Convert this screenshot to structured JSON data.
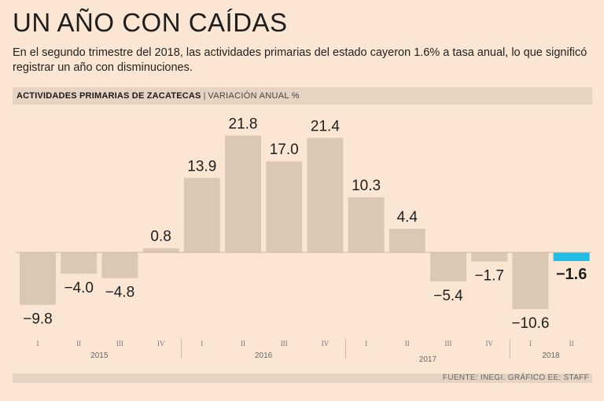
{
  "header": {
    "title": "UN AÑO CON CAÍDAS",
    "subtitle": "En el segundo trimestre del 2018, las actividades primarias del estado cayeron 1.6% a tasa anual, lo que significó registrar un año con disminuciones."
  },
  "band": {
    "indicator": "ACTIVIDADES PRIMARIAS DE ZACATECAS",
    "separator": "|",
    "unit": "VARIACIÓN ANUAL %"
  },
  "footer": {
    "source": "FUENTE: INEGI. GRÁFICO EE: STAFF"
  },
  "colors": {
    "bar": "#dbc8b4",
    "highlight": "#22bde6",
    "background": "#fbe6d3",
    "band": "#e6d3c1",
    "text": "#1e1e1e"
  },
  "chart_data": {
    "type": "bar",
    "title": "ACTIVIDADES PRIMARIAS DE ZACATECAS",
    "ylabel": "VARIACIÓN ANUAL %",
    "xlabel": "",
    "ylim": [
      -12,
      23
    ],
    "grid": false,
    "categories": [
      "I",
      "II",
      "III",
      "IV",
      "I",
      "II",
      "III",
      "IV",
      "I",
      "II",
      "III",
      "IV",
      "I",
      "II"
    ],
    "years": [
      {
        "label": "2015",
        "start": 0,
        "end": 3
      },
      {
        "label": "2016",
        "start": 4,
        "end": 7
      },
      {
        "label": "2017",
        "start": 8,
        "end": 11
      },
      {
        "label": "2018",
        "start": 12,
        "end": 13
      }
    ],
    "values": [
      -9.8,
      -4.0,
      -4.8,
      0.8,
      13.9,
      21.8,
      17.0,
      21.4,
      10.3,
      4.4,
      -5.4,
      -1.7,
      -10.6,
      -1.6
    ],
    "labels": [
      "−9.8",
      "−4.0",
      "−4.8",
      "0.8",
      "13.9",
      "21.8",
      "17.0",
      "21.4",
      "10.3",
      "4.4",
      "−5.4",
      "−1.7",
      "−10.6",
      "−1.6"
    ],
    "highlight_index": 13
  }
}
